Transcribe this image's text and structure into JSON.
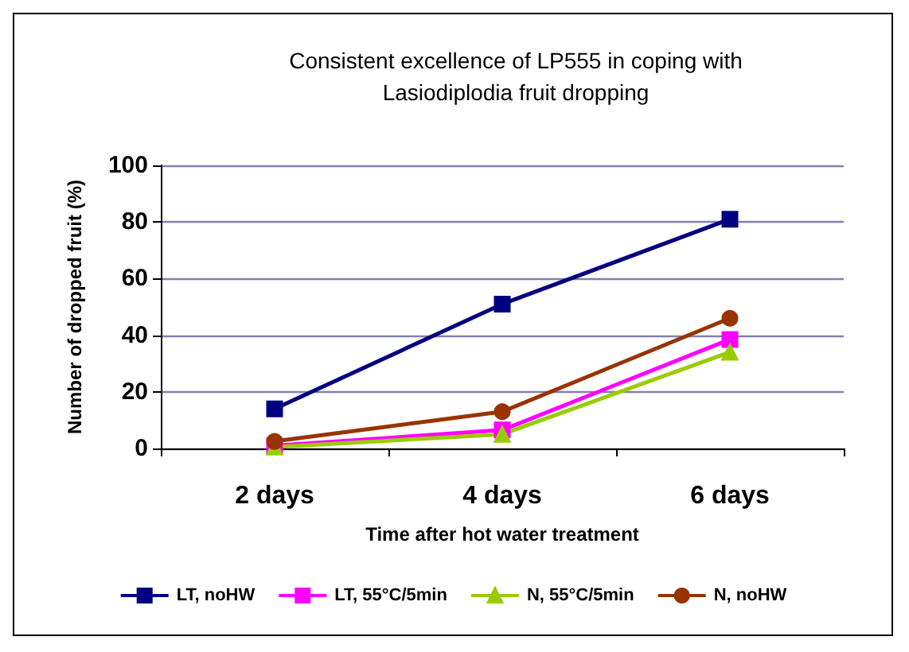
{
  "chart_data": {
    "type": "line",
    "title": "Consistent excellence of LP555 in coping with\nLasiodiplodia fruit dropping",
    "xlabel": "Time after hot water treatment",
    "ylabel": "Number of dropped fruit (%)",
    "categories": [
      "2 days",
      "4 days",
      "6 days"
    ],
    "series": [
      {
        "name": "LT, noHW",
        "color": "#000080",
        "marker": "square",
        "values": [
          14,
          51,
          81
        ]
      },
      {
        "name": "LT, 55°C/5min",
        "color": "#ff00ff",
        "marker": "square",
        "values": [
          1,
          6.5,
          38.5
        ]
      },
      {
        "name": "N, 55°C/5min",
        "color": "#99cc00",
        "marker": "triangle",
        "values": [
          0.5,
          5,
          34
        ]
      },
      {
        "name": "N, noHW",
        "color": "#993300",
        "marker": "circle",
        "values": [
          2.5,
          13,
          46
        ]
      }
    ],
    "ylim": [
      0,
      100
    ],
    "yticks": [
      0,
      20,
      40,
      60,
      80,
      100
    ],
    "grid": "y",
    "legend": "bottom"
  }
}
